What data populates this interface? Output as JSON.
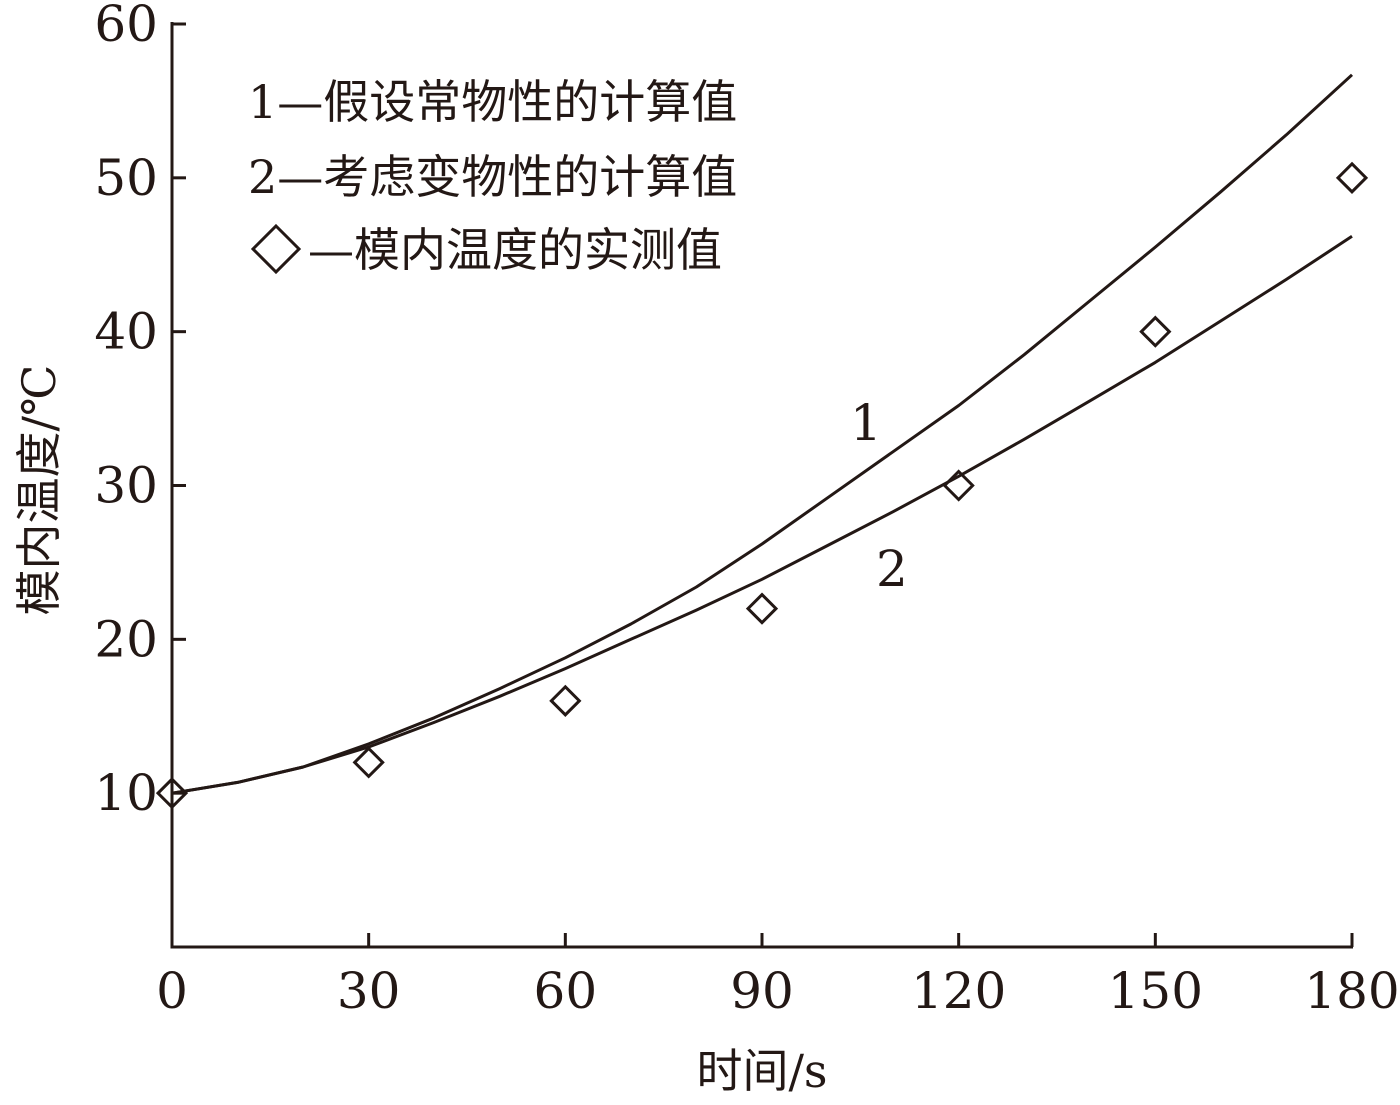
{
  "chart_data": {
    "type": "line",
    "xlabel": "时间/s",
    "ylabel": "模内温度/℃",
    "xlim": [
      0,
      180
    ],
    "ylim": [
      0,
      60
    ],
    "xticks": [
      0,
      30,
      60,
      90,
      120,
      150,
      180
    ],
    "yticks": [
      10,
      20,
      30,
      40,
      50,
      60
    ],
    "grid": false,
    "legend_position": "top-left",
    "legend": [
      {
        "key": "1",
        "text": "假设常物性的计算值"
      },
      {
        "key": "2",
        "text": "考虑变物性的计算值"
      },
      {
        "key": "◇",
        "text": "模内温度的实测值"
      }
    ],
    "curve_labels": [
      "1",
      "2"
    ],
    "series": [
      {
        "key": "1",
        "kind": "line",
        "x": [
          0,
          10,
          20,
          30,
          40,
          50,
          60,
          70,
          80,
          90,
          100,
          110,
          120,
          130,
          140,
          150,
          160,
          170,
          180
        ],
        "y": [
          10.0,
          10.7,
          11.7,
          13.2,
          14.9,
          16.8,
          18.8,
          21.0,
          23.4,
          26.2,
          29.2,
          32.2,
          35.2,
          38.5,
          42.0,
          45.5,
          49.1,
          52.8,
          56.7
        ]
      },
      {
        "key": "2",
        "kind": "line",
        "x": [
          0,
          10,
          20,
          30,
          40,
          50,
          60,
          70,
          80,
          90,
          100,
          110,
          120,
          130,
          140,
          150,
          160,
          170,
          180
        ],
        "y": [
          10.0,
          10.7,
          11.7,
          13.0,
          14.6,
          16.3,
          18.1,
          20.0,
          21.9,
          23.9,
          26.1,
          28.3,
          30.6,
          33.0,
          35.5,
          38.0,
          40.7,
          43.4,
          46.2
        ]
      },
      {
        "key": "◇",
        "kind": "scatter",
        "marker": "diamond",
        "x": [
          0,
          30,
          60,
          90,
          120,
          150,
          180
        ],
        "y": [
          10,
          12,
          16,
          22,
          30,
          40,
          50
        ]
      }
    ]
  }
}
